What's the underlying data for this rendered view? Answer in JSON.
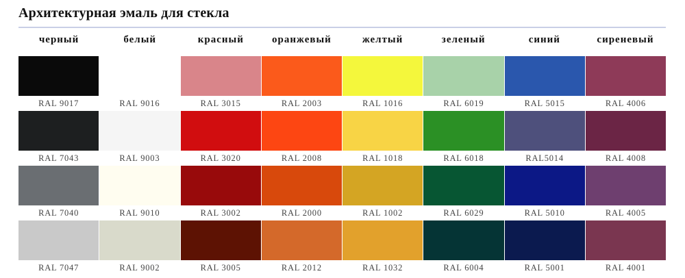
{
  "title": "Архитектурная эмаль для стекла",
  "columns": [
    "черный",
    "белый",
    "красный",
    "оранжевый",
    "желтый",
    "зеленый",
    "синий",
    "сиреневый"
  ],
  "rows": [
    [
      {
        "code": "RAL 9017",
        "color": "#0a0a0a"
      },
      {
        "code": "RAL 9016",
        "color": "#ffffff"
      },
      {
        "code": "RAL 3015",
        "color": "#d9858a"
      },
      {
        "code": "RAL 2003",
        "color": "#fb5a1b"
      },
      {
        "code": "RAL 1016",
        "color": "#f4f73c"
      },
      {
        "code": "RAL 6019",
        "color": "#a8d2a9"
      },
      {
        "code": "RAL 5015",
        "color": "#2a57ad"
      },
      {
        "code": "RAL 4006",
        "color": "#8e3a58"
      }
    ],
    [
      {
        "code": "RAL 7043",
        "color": "#1d1f20"
      },
      {
        "code": "RAL 9003",
        "color": "#f5f5f5"
      },
      {
        "code": "RAL 3020",
        "color": "#d10d0f"
      },
      {
        "code": "RAL 2008",
        "color": "#fd4612"
      },
      {
        "code": "RAL 1018",
        "color": "#f8d445"
      },
      {
        "code": "RAL 6018",
        "color": "#2b9025"
      },
      {
        "code": "RAL5014",
        "color": "#4e507c"
      },
      {
        "code": "RAL 4008",
        "color": "#6b2545"
      }
    ],
    [
      {
        "code": "RAL 7040",
        "color": "#6a6e72"
      },
      {
        "code": "RAL 9010",
        "color": "#fffdf0"
      },
      {
        "code": "RAL 3002",
        "color": "#980a0b"
      },
      {
        "code": "RAL 2000",
        "color": "#d8490c"
      },
      {
        "code": "RAL 1002",
        "color": "#d4a523"
      },
      {
        "code": "RAL 6029",
        "color": "#075633"
      },
      {
        "code": "RAL 5010",
        "color": "#0c1886"
      },
      {
        "code": "RAL 4005",
        "color": "#6e3f6f"
      }
    ],
    [
      {
        "code": "RAL 7047",
        "color": "#c9c9c9"
      },
      {
        "code": "RAL 9002",
        "color": "#d9dacb"
      },
      {
        "code": "RAL 3005",
        "color": "#5d1203"
      },
      {
        "code": "RAL 2012",
        "color": "#d4692a"
      },
      {
        "code": "RAL 1032",
        "color": "#e2a12c"
      },
      {
        "code": "RAL 6004",
        "color": "#053435"
      },
      {
        "code": "RAL 5001",
        "color": "#0b1a4f"
      },
      {
        "code": "RAL 4001",
        "color": "#7a3650"
      }
    ]
  ]
}
